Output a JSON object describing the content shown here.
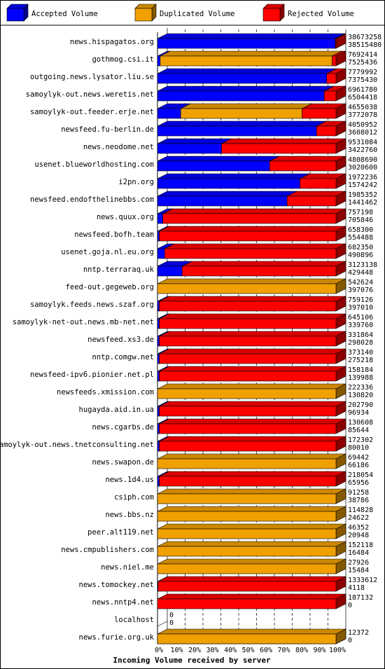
{
  "colors": {
    "accepted": "#0000ff",
    "duplicated": "#f0a000",
    "rejected": "#ff0000"
  },
  "legend": [
    {
      "key": "accepted",
      "label": "Accepted Volume"
    },
    {
      "key": "duplicated",
      "label": "Duplicated Volume"
    },
    {
      "key": "rejected",
      "label": "Rejected Volume"
    }
  ],
  "chart_data": {
    "type": "bar",
    "orientation": "horizontal",
    "stacked": true,
    "title": "",
    "xlabel": "Incoming Volume received by server",
    "ylabel": "",
    "xlim": [
      0,
      100
    ],
    "x_unit": "%",
    "x_ticks": [
      "0%",
      "10%",
      "20%",
      "30%",
      "40%",
      "50%",
      "60%",
      "70%",
      "80%",
      "90%",
      "100%"
    ],
    "grid": true,
    "legend_position": "top",
    "categories": [
      "news.hispagatos.org",
      "gothmog.csi.it",
      "outgoing.news.lysator.liu.se",
      "samoylyk-out.news.weretis.net",
      "samoylyk-out.feeder.erje.net",
      "newsfeed.fu-berlin.de",
      "news.neodome.net",
      "usenet.blueworldhosting.com",
      "i2pn.org",
      "newsfeed.endofthelinebbs.com",
      "news.quux.org",
      "newsfeed.bofh.team",
      "usenet.goja.nl.eu.org",
      "nntp.terraraq.uk",
      "feed-out.gegeweb.org",
      "samoylyk.feeds.news.szaf.org",
      "samoylyk-net-out.news.mb-net.net",
      "newsfeed.xs3.de",
      "nntp.comgw.net",
      "newsfeed-ipv6.pionier.net.pl",
      "newsfeeds.xmission.com",
      "hugayda.aid.in.ua",
      "news.cgarbs.de",
      "samoylyk-out.news.tnetconsulting.net",
      "news.swapon.de",
      "news.1d4.us",
      "csiph.com",
      "news.bbs.nz",
      "peer.alt119.net",
      "news.cmpublishers.com",
      "news.niel.me",
      "news.tomockey.net",
      "news.nntp4.net",
      "localhost",
      "news.furie.org.uk"
    ],
    "total_volume": [
      38673258,
      7692414,
      7779992,
      6961780,
      4655038,
      4050952,
      9531084,
      4808690,
      1972236,
      1985352,
      757198,
      658300,
      682350,
      3123138,
      542624,
      759126,
      645106,
      331864,
      373140,
      158184,
      222336,
      202790,
      130608,
      172302,
      69442,
      218054,
      91258,
      114828,
      46352,
      152118,
      27926,
      1333612,
      187132,
      0,
      12372
    ],
    "accepted_volume": [
      38515480,
      7525436,
      7375430,
      6504418,
      3772078,
      3608012,
      3422760,
      3020600,
      1574242,
      1441462,
      705846,
      554488,
      490896,
      429448,
      397076,
      397010,
      339760,
      298028,
      275218,
      139988,
      130820,
      96934,
      85644,
      80010,
      66186,
      65956,
      38786,
      24622,
      20948,
      16484,
      15484,
      4118,
      0,
      0,
      0
    ],
    "series": [
      {
        "name": "Accepted Volume",
        "color": "#0000ff",
        "values": [
          99.6,
          1.5,
          94.8,
          93.4,
          13.0,
          89.1,
          35.9,
          62.8,
          79.8,
          72.6,
          3.0,
          1.0,
          4.0,
          13.8,
          0.0,
          1.0,
          1.0,
          1.0,
          1.0,
          1.0,
          0.0,
          1.0,
          1.0,
          1.0,
          0.0,
          1.0,
          0.0,
          0.0,
          0.0,
          0.0,
          0.0,
          0.3,
          0.0,
          0.0,
          0.0
        ]
      },
      {
        "name": "Duplicated Volume",
        "color": "#f0a000",
        "values": [
          0.0,
          96.3,
          0.0,
          0.0,
          68.0,
          0.0,
          0.0,
          0.0,
          0.0,
          0.0,
          0.0,
          0.0,
          0.0,
          0.0,
          100.0,
          0.0,
          0.0,
          0.0,
          0.0,
          0.0,
          100.0,
          0.0,
          0.0,
          0.0,
          100.0,
          0.0,
          100.0,
          100.0,
          100.0,
          100.0,
          100.0,
          0.0,
          0.0,
          0.0,
          100.0
        ]
      },
      {
        "name": "Rejected Volume",
        "color": "#ff0000",
        "values": [
          0.4,
          2.2,
          5.2,
          6.6,
          19.0,
          10.9,
          64.1,
          37.2,
          20.2,
          27.4,
          97.0,
          99.0,
          96.0,
          86.2,
          0.0,
          99.0,
          99.0,
          99.0,
          99.0,
          99.0,
          0.0,
          99.0,
          99.0,
          99.0,
          0.0,
          99.0,
          0.0,
          0.0,
          0.0,
          0.0,
          0.0,
          99.7,
          100.0,
          0.0,
          0.0
        ]
      }
    ]
  }
}
